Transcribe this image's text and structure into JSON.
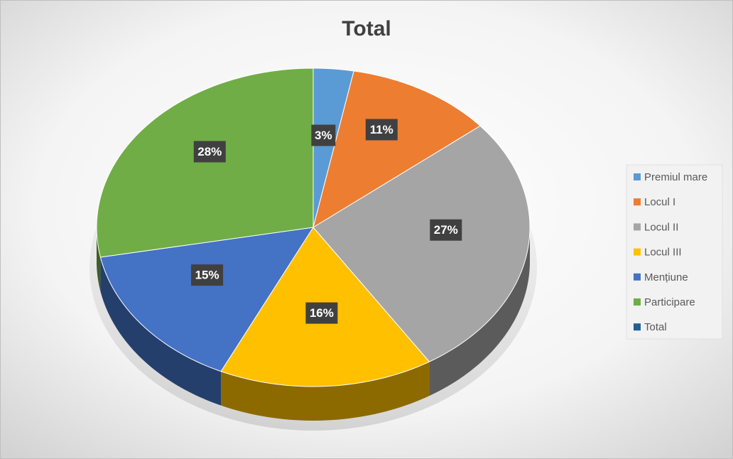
{
  "chart_data": {
    "type": "pie",
    "title": "Total",
    "categories": [
      "Premiul mare",
      "Locul I",
      "Locul II",
      "Locul III",
      "Mențiune",
      "Participare",
      "Total"
    ],
    "values": [
      3,
      11,
      27,
      16,
      15,
      28,
      null
    ],
    "value_labels": [
      "3%",
      "11%",
      "27%",
      "16%",
      "15%",
      "28%",
      null
    ],
    "colors": [
      "#5b9bd5",
      "#ed7d31",
      "#a5a5a5",
      "#ffc000",
      "#4472c4",
      "#70ad47",
      "#255e91"
    ],
    "legend": "right"
  }
}
